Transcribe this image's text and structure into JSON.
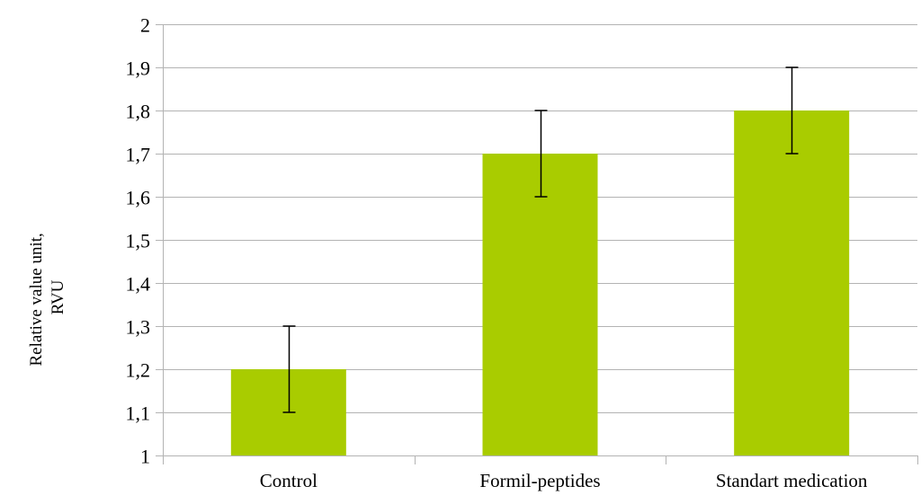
{
  "chart_data": {
    "type": "bar",
    "categories": [
      "Control",
      "Formil-peptides",
      "Standart medication"
    ],
    "values": [
      1.2,
      1.7,
      1.8
    ],
    "error_low": [
      1.1,
      1.6,
      1.7
    ],
    "error_high": [
      1.3,
      1.8,
      1.9
    ],
    "ylim": [
      1,
      2
    ],
    "yticks": [
      1,
      1.1,
      1.2,
      1.3,
      1.4,
      1.5,
      1.6,
      1.7,
      1.8,
      1.9,
      2
    ],
    "ytick_labels": [
      "1",
      "1,1",
      "1,2",
      "1,3",
      "1,4",
      "1,5",
      "1,6",
      "1,7",
      "1,8",
      "1,9",
      "2"
    ],
    "ylabel_lines": [
      "Relative value unit,",
      "RVU"
    ],
    "grid": true,
    "bar_color": "#a9cc00",
    "grid_color": "#b3b3b3",
    "error_bar_color": "#000000"
  }
}
